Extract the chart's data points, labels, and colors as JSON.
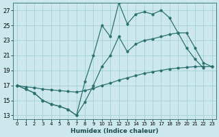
{
  "xlabel": "Humidex (Indice chaleur)",
  "bg_color": "#cce8ec",
  "grid_color": "#99cccc",
  "line_color": "#2a7070",
  "xlim": [
    -0.5,
    23.5
  ],
  "ylim": [
    12.5,
    28.0
  ],
  "xticks": [
    0,
    1,
    2,
    3,
    4,
    5,
    6,
    7,
    8,
    9,
    10,
    11,
    12,
    13,
    14,
    15,
    16,
    17,
    18,
    19,
    20,
    21,
    22,
    23
  ],
  "yticks": [
    13,
    15,
    17,
    19,
    21,
    23,
    25,
    27
  ],
  "line1_x": [
    0,
    1,
    2,
    3,
    4,
    5,
    6,
    7,
    8,
    9,
    10,
    11,
    12,
    13,
    14,
    15,
    16,
    17,
    18,
    19,
    20,
    21,
    22
  ],
  "line1_y": [
    17.0,
    16.5,
    16.0,
    15.0,
    14.5,
    14.2,
    13.8,
    13.0,
    17.5,
    21.0,
    25.0,
    23.5,
    28.0,
    25.2,
    26.5,
    26.8,
    26.5,
    27.0,
    26.0,
    24.0,
    22.0,
    20.5,
    19.3
  ],
  "line2_x": [
    0,
    1,
    2,
    3,
    4,
    5,
    6,
    7,
    8,
    9,
    10,
    11,
    12,
    13,
    14,
    15,
    16,
    17,
    18,
    19,
    20,
    21,
    22,
    23
  ],
  "line2_y": [
    17.0,
    16.8,
    16.7,
    16.5,
    16.4,
    16.3,
    16.2,
    16.1,
    16.3,
    16.6,
    17.0,
    17.3,
    17.7,
    18.0,
    18.3,
    18.6,
    18.8,
    19.0,
    19.2,
    19.3,
    19.4,
    19.5,
    19.5,
    19.5
  ],
  "line3_x": [
    0,
    1,
    2,
    3,
    4,
    5,
    6,
    7,
    8,
    9,
    10,
    11,
    12,
    13,
    14,
    15,
    16,
    17,
    18,
    19,
    20,
    21,
    22,
    23
  ],
  "line3_y": [
    17.0,
    16.5,
    16.0,
    15.0,
    14.5,
    14.2,
    13.8,
    13.0,
    14.8,
    17.0,
    19.5,
    21.0,
    23.5,
    21.5,
    22.5,
    23.0,
    23.2,
    23.5,
    23.8,
    24.0,
    24.0,
    22.0,
    20.0,
    19.5
  ]
}
